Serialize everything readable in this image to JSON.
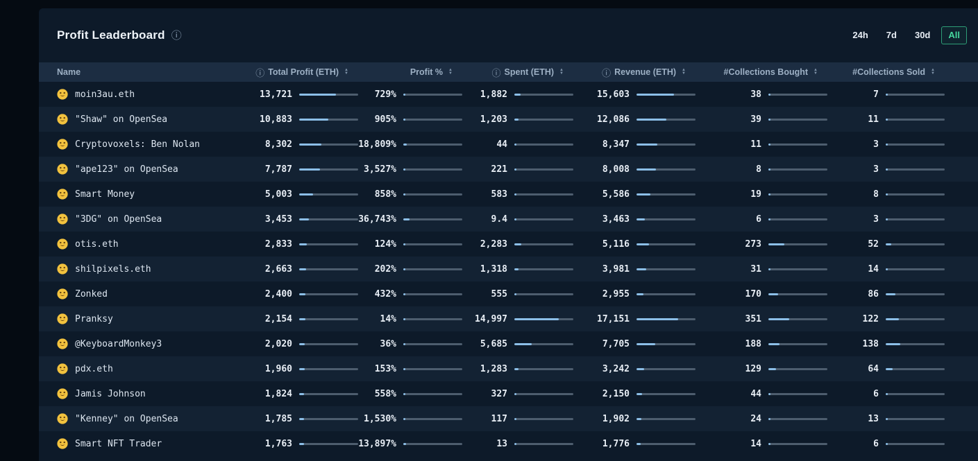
{
  "title": "Profit Leaderboard",
  "title_info_icon": "ⓘ",
  "icons": {
    "row_icon": "money-face-icon",
    "info": "ⓘ",
    "sort_up": "▲",
    "sort_down": "▼"
  },
  "time_filters": {
    "options": [
      "24h",
      "7d",
      "30d",
      "All"
    ],
    "selected": "All"
  },
  "accent_colors": {
    "selected_filter_text": "#45d79e",
    "selected_filter_border": "#2e9e77",
    "bar_fill": "#8cbfe8",
    "bar_track": "#4d5d6e",
    "header_bg": "#1c2d42",
    "panel_bg": "#0d1a29",
    "alt_row_bg": "#132233"
  },
  "table": {
    "columns": [
      {
        "label": "Name",
        "info": false,
        "sortable": false
      },
      {
        "label": "Total Profit (ETH)",
        "info": true,
        "sortable": true
      },
      {
        "label": "Profit %",
        "info": false,
        "sortable": true
      },
      {
        "label": "Spent (ETH)",
        "info": true,
        "sortable": true
      },
      {
        "label": "Revenue (ETH)",
        "info": true,
        "sortable": true
      },
      {
        "label": "#Collections Bought",
        "info": false,
        "sortable": true
      },
      {
        "label": "#Collections Sold",
        "info": false,
        "sortable": true
      }
    ],
    "rows": [
      {
        "name": "moin3au.eth",
        "cells": [
          {
            "v": "13,721",
            "b": 62
          },
          {
            "v": "729%",
            "b": 1
          },
          {
            "v": "1,882",
            "b": 10
          },
          {
            "v": "15,603",
            "b": 64
          },
          {
            "v": "38",
            "b": 4
          },
          {
            "v": "7",
            "b": 1
          }
        ]
      },
      {
        "name": "\"Shaw\" on OpenSea",
        "cells": [
          {
            "v": "10,883",
            "b": 49
          },
          {
            "v": "905%",
            "b": 1
          },
          {
            "v": "1,203",
            "b": 7
          },
          {
            "v": "12,086",
            "b": 50
          },
          {
            "v": "39",
            "b": 4
          },
          {
            "v": "11",
            "b": 2
          }
        ]
      },
      {
        "name": "Cryptovoxels: Ben Nolan",
        "cells": [
          {
            "v": "8,302",
            "b": 38
          },
          {
            "v": "18,809%",
            "b": 6
          },
          {
            "v": "44",
            "b": 1
          },
          {
            "v": "8,347",
            "b": 35
          },
          {
            "v": "11",
            "b": 1
          },
          {
            "v": "3",
            "b": 1
          }
        ]
      },
      {
        "name": "\"ape123\" on OpenSea",
        "cells": [
          {
            "v": "7,787",
            "b": 35
          },
          {
            "v": "3,527%",
            "b": 2
          },
          {
            "v": "221",
            "b": 1
          },
          {
            "v": "8,008",
            "b": 33
          },
          {
            "v": "8",
            "b": 1
          },
          {
            "v": "3",
            "b": 1
          }
        ]
      },
      {
        "name": "Smart Money",
        "cells": [
          {
            "v": "5,003",
            "b": 23
          },
          {
            "v": "858%",
            "b": 1
          },
          {
            "v": "583",
            "b": 3
          },
          {
            "v": "5,586",
            "b": 23
          },
          {
            "v": "19",
            "b": 2
          },
          {
            "v": "8",
            "b": 1
          }
        ]
      },
      {
        "name": "\"3DG\" on OpenSea",
        "cells": [
          {
            "v": "3,453",
            "b": 16
          },
          {
            "v": "36,743%",
            "b": 10
          },
          {
            "v": "9.4",
            "b": 1
          },
          {
            "v": "3,463",
            "b": 14
          },
          {
            "v": "6",
            "b": 1
          },
          {
            "v": "3",
            "b": 1
          }
        ]
      },
      {
        "name": "otis.eth",
        "cells": [
          {
            "v": "2,833",
            "b": 13
          },
          {
            "v": "124%",
            "b": 1
          },
          {
            "v": "2,283",
            "b": 12
          },
          {
            "v": "5,116",
            "b": 21
          },
          {
            "v": "273",
            "b": 27
          },
          {
            "v": "52",
            "b": 9
          }
        ]
      },
      {
        "name": "shilpixels.eth",
        "cells": [
          {
            "v": "2,663",
            "b": 12
          },
          {
            "v": "202%",
            "b": 1
          },
          {
            "v": "1,318",
            "b": 7
          },
          {
            "v": "3,981",
            "b": 17
          },
          {
            "v": "31",
            "b": 3
          },
          {
            "v": "14",
            "b": 3
          }
        ]
      },
      {
        "name": "Zonked",
        "cells": [
          {
            "v": "2,400",
            "b": 11
          },
          {
            "v": "432%",
            "b": 1
          },
          {
            "v": "555",
            "b": 3
          },
          {
            "v": "2,955",
            "b": 12
          },
          {
            "v": "170",
            "b": 17
          },
          {
            "v": "86",
            "b": 16
          }
        ]
      },
      {
        "name": "Pranksy",
        "cells": [
          {
            "v": "2,154",
            "b": 10
          },
          {
            "v": "14%",
            "b": 1
          },
          {
            "v": "14,997",
            "b": 75
          },
          {
            "v": "17,151",
            "b": 71
          },
          {
            "v": "351",
            "b": 35
          },
          {
            "v": "122",
            "b": 22
          }
        ]
      },
      {
        "name": "@KeyboardMonkey3",
        "cells": [
          {
            "v": "2,020",
            "b": 9
          },
          {
            "v": "36%",
            "b": 1
          },
          {
            "v": "5,685",
            "b": 29
          },
          {
            "v": "7,705",
            "b": 32
          },
          {
            "v": "188",
            "b": 19
          },
          {
            "v": "138",
            "b": 25
          }
        ]
      },
      {
        "name": "pdx.eth",
        "cells": [
          {
            "v": "1,960",
            "b": 9
          },
          {
            "v": "153%",
            "b": 1
          },
          {
            "v": "1,283",
            "b": 7
          },
          {
            "v": "3,242",
            "b": 13
          },
          {
            "v": "129",
            "b": 13
          },
          {
            "v": "64",
            "b": 12
          }
        ]
      },
      {
        "name": "Jamis Johnson",
        "cells": [
          {
            "v": "1,824",
            "b": 8
          },
          {
            "v": "558%",
            "b": 1
          },
          {
            "v": "327",
            "b": 2
          },
          {
            "v": "2,150",
            "b": 9
          },
          {
            "v": "44",
            "b": 4
          },
          {
            "v": "6",
            "b": 1
          }
        ]
      },
      {
        "name": "\"Kenney\" on OpenSea",
        "cells": [
          {
            "v": "1,785",
            "b": 8
          },
          {
            "v": "1,530%",
            "b": 1
          },
          {
            "v": "117",
            "b": 1
          },
          {
            "v": "1,902",
            "b": 8
          },
          {
            "v": "24",
            "b": 2
          },
          {
            "v": "13",
            "b": 2
          }
        ]
      },
      {
        "name": "Smart NFT Trader",
        "cells": [
          {
            "v": "1,763",
            "b": 8
          },
          {
            "v": "13,897%",
            "b": 5
          },
          {
            "v": "13",
            "b": 1
          },
          {
            "v": "1,776",
            "b": 7
          },
          {
            "v": "14",
            "b": 1
          },
          {
            "v": "6",
            "b": 1
          }
        ]
      }
    ]
  }
}
